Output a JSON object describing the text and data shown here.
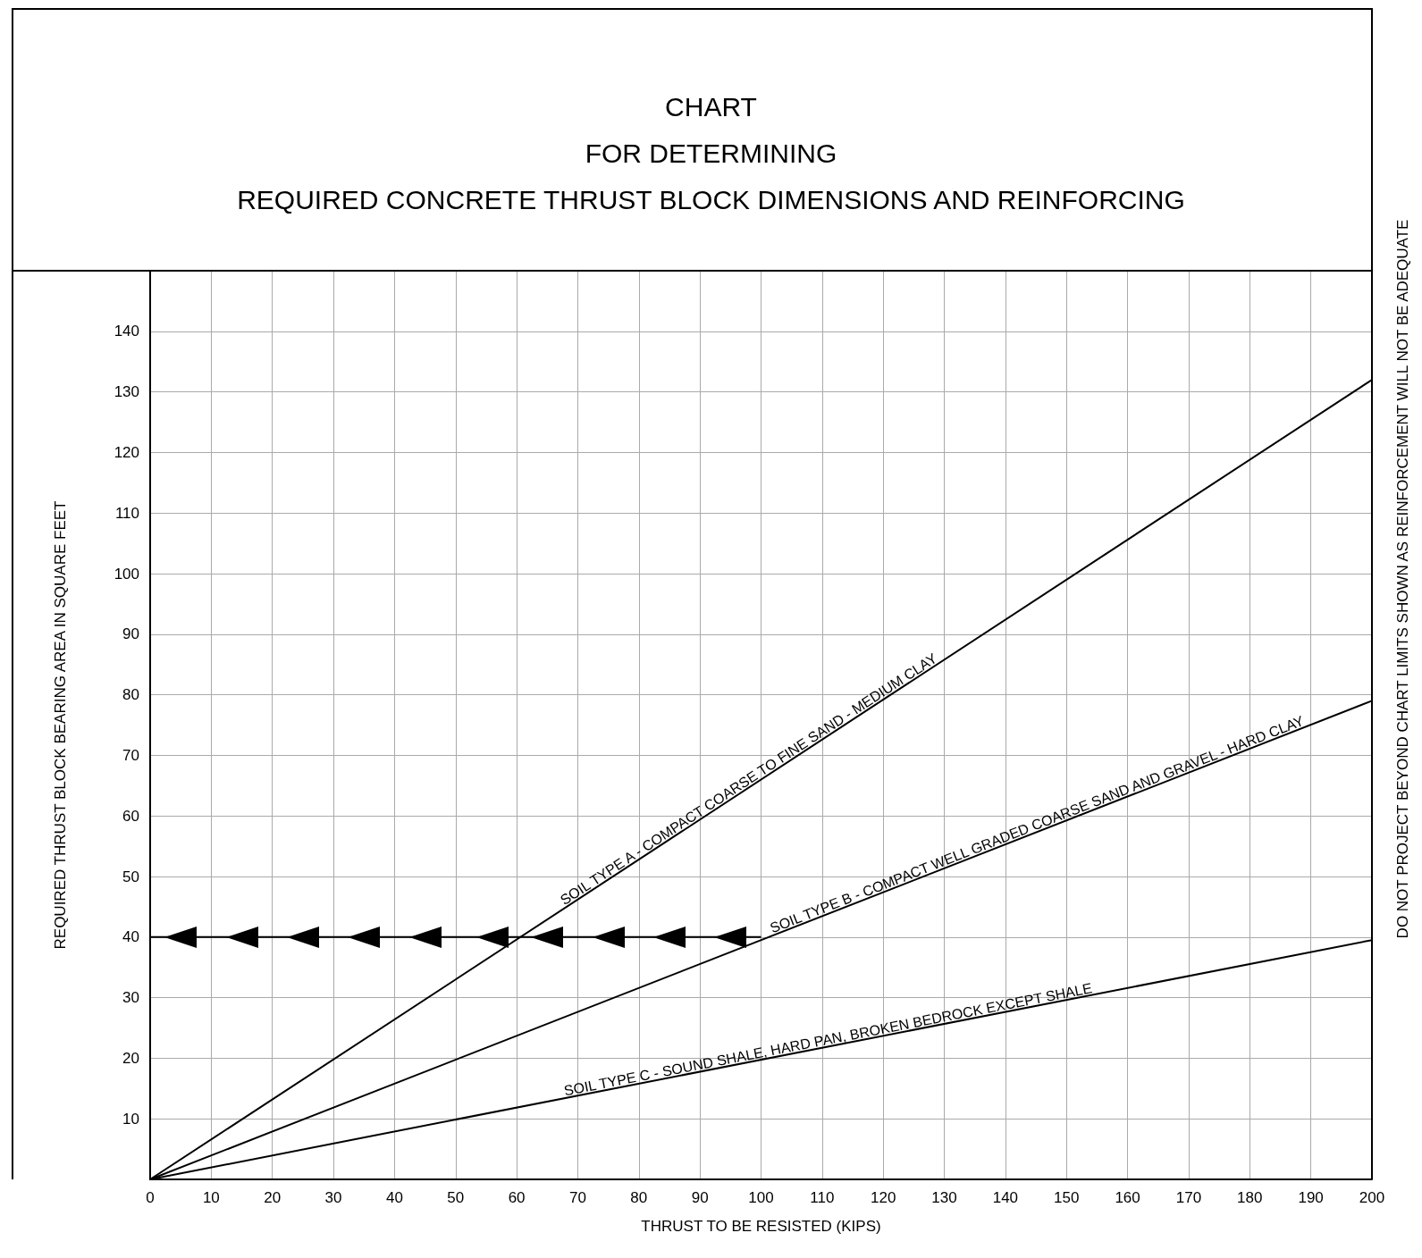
{
  "chart_data": {
    "type": "line",
    "title": "CHART\nFOR DETERMINING\nREQUIRED CONCRETE THRUST BLOCK DIMENSIONS AND REINFORCING",
    "xlabel": "THRUST TO BE RESISTED (KIPS)",
    "ylabel": "REQUIRED THRUST BLOCK BEARING AREA IN SQUARE FEET",
    "x": [
      0,
      200
    ],
    "series": [
      {
        "name": "SOIL TYPE A - COMPACT COARSE TO FINE SAND - MEDIUM CLAY",
        "color": "#000000",
        "values": [
          0,
          132
        ]
      },
      {
        "name": "SOIL TYPE B - COMPACT WELL GRADED COARSE SAND AND GRAVEL - HARD CLAY",
        "color": "#000000",
        "values": [
          0,
          79
        ]
      },
      {
        "name": "SOIL TYPE C - SOUND SHALE, HARD PAN, BROKEN BEDROCK EXCEPT SHALE",
        "color": "#000000",
        "values": [
          0,
          39.5
        ]
      },
      {
        "x": [
          0,
          100
        ],
        "color": "#000000",
        "values": [
          40,
          40
        ]
      }
    ],
    "xlim": [
      0,
      200
    ],
    "xticks": [
      0,
      10,
      20,
      30,
      40,
      50,
      60,
      70,
      80,
      90,
      100,
      110,
      120,
      130,
      140,
      150,
      160,
      170,
      180,
      190,
      200
    ],
    "ylim": [
      0,
      150
    ],
    "yticks": [
      10,
      20,
      30,
      40,
      50,
      60,
      70,
      80,
      90,
      100,
      110,
      120,
      130,
      140
    ],
    "annotations": [
      "DO NOT PROJECT BEYOND CHART LIMITS SHOWN AS REINFORCEMENT WILL NOT BE ADEQUATE"
    ],
    "grid": true,
    "legend": false,
    "marker": "none",
    "line_style": "solid"
  }
}
